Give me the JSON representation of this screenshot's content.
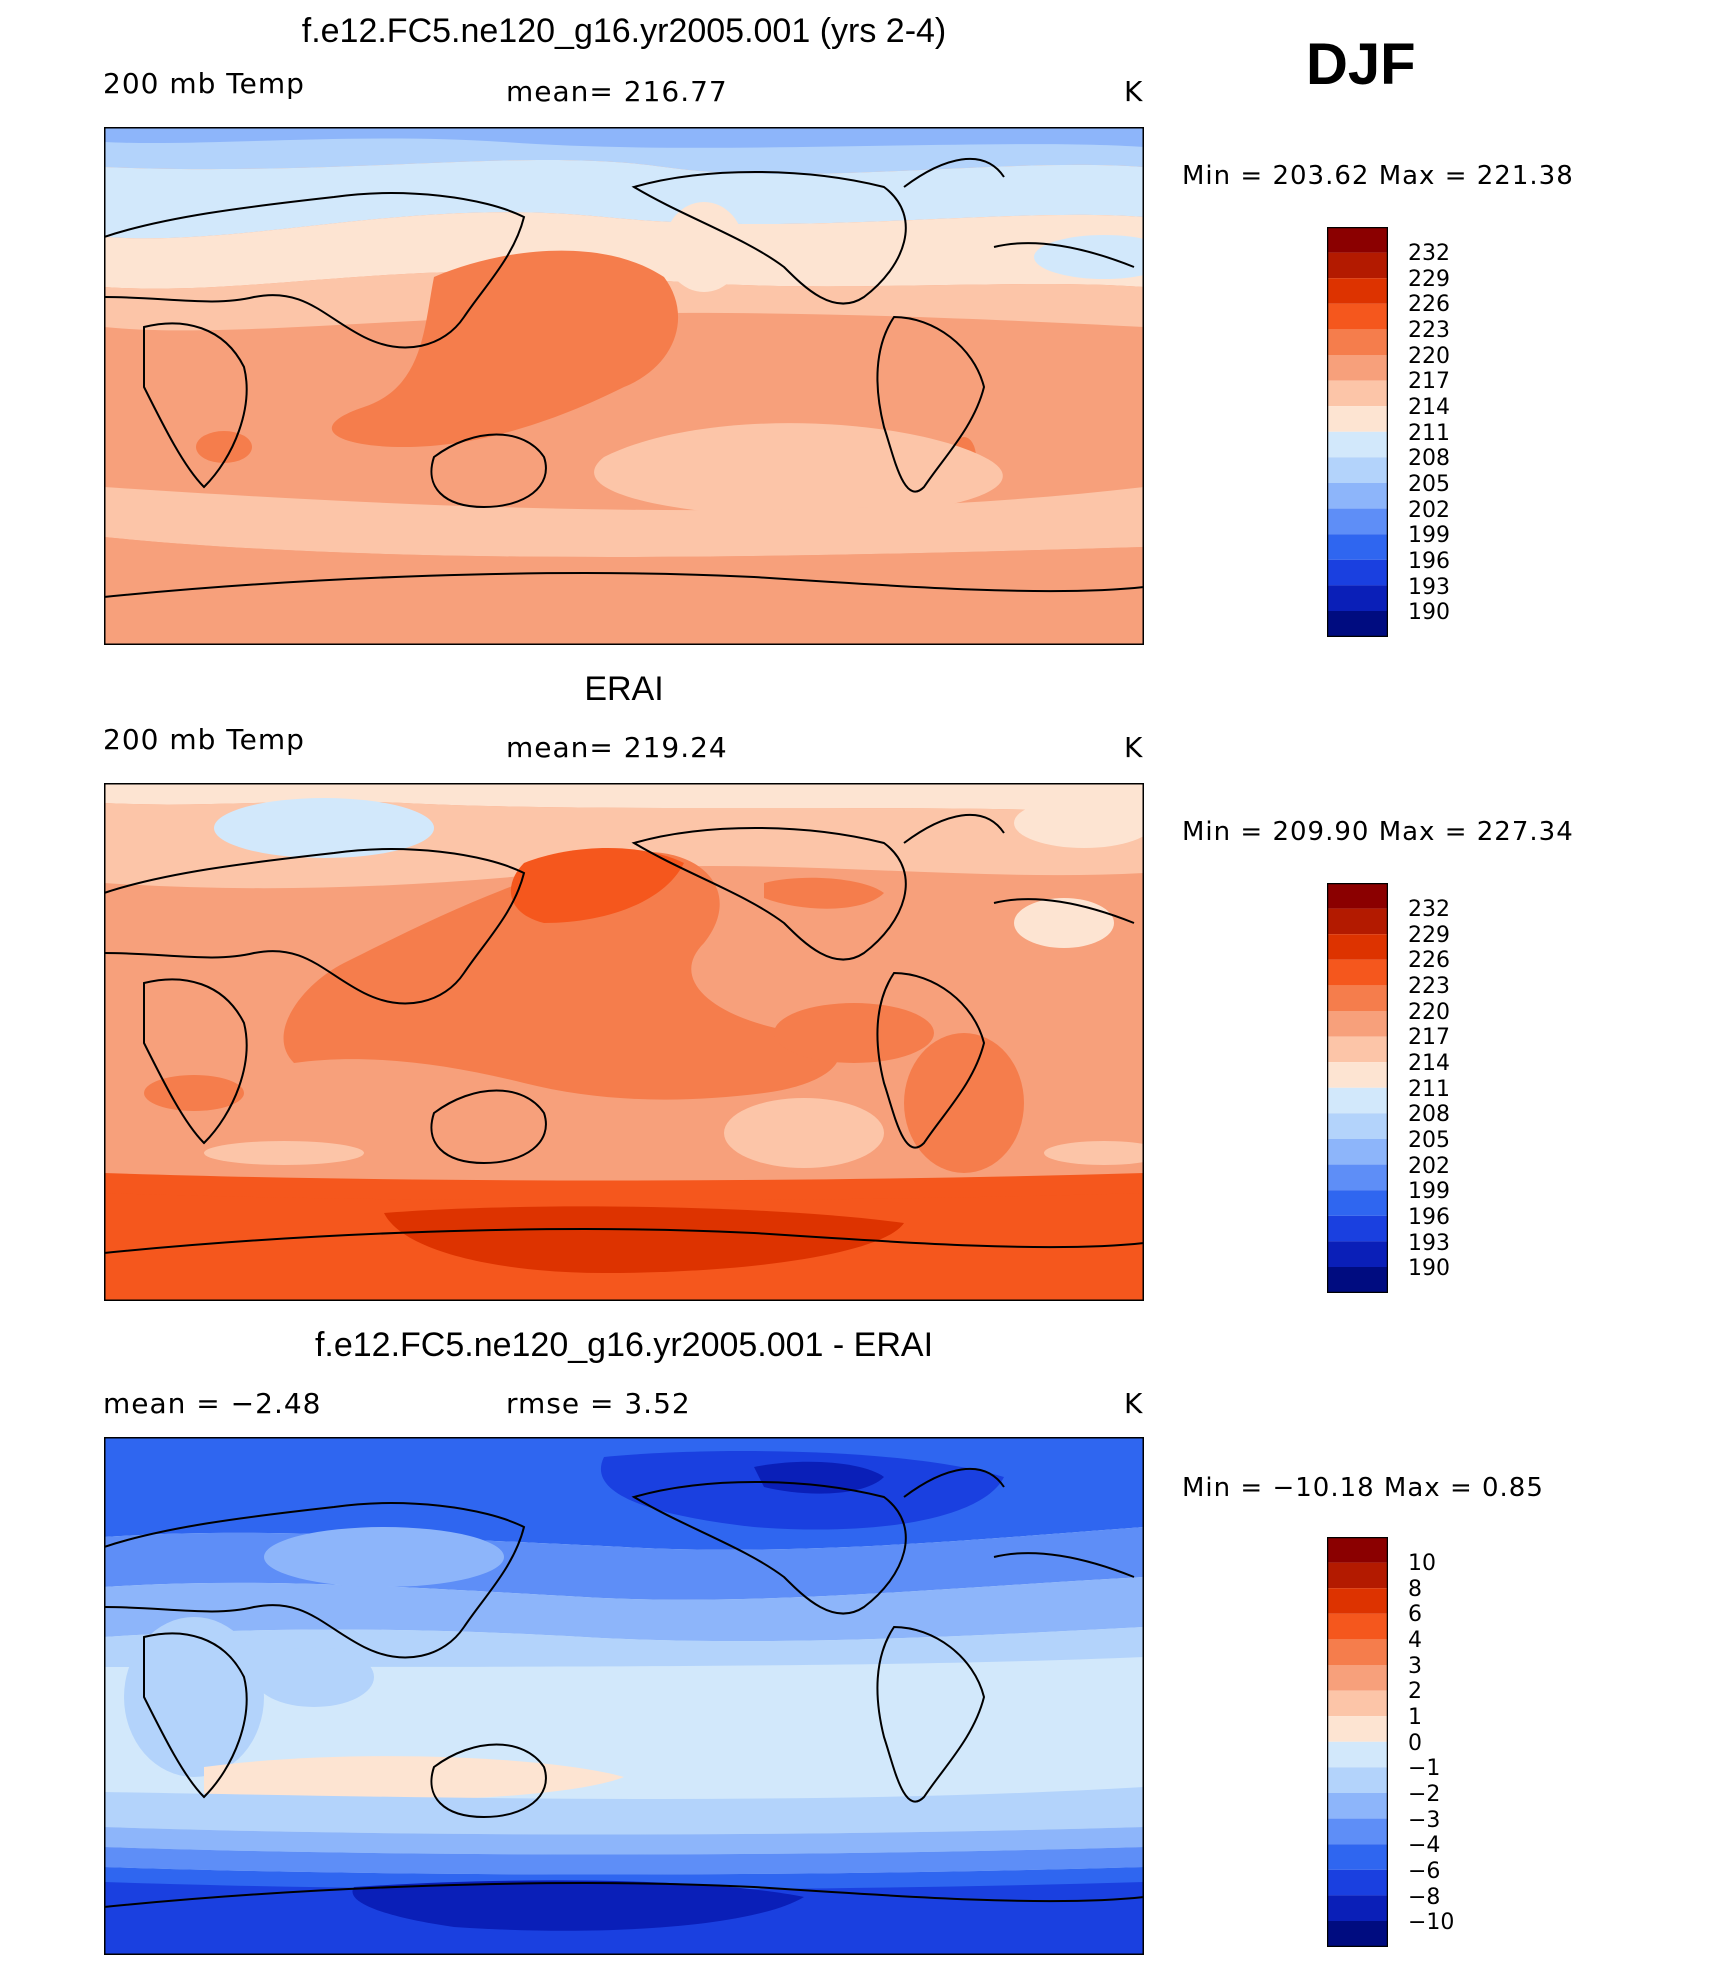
{
  "season": "DJF",
  "units": "K",
  "panels": [
    {
      "title": "f.e12.FC5.ne120_g16.yr2005.001 (yrs 2-4)",
      "left_label": "200 mb Temp",
      "mid_label": "mean=  216.77",
      "right_label": "K",
      "minmax": "Min  =  203.62  Max  =  221.38",
      "colorbar": {
        "levels": [
          "232",
          "229",
          "226",
          "223",
          "220",
          "217",
          "214",
          "211",
          "208",
          "205",
          "202",
          "199",
          "196",
          "193",
          "190"
        ],
        "colors": [
          "#8b0000",
          "#b31a00",
          "#dd3300",
          "#f5571d",
          "#f57d4c",
          "#f7a07b",
          "#fcc5a8",
          "#fde4d2",
          "#d2e8fb",
          "#b3d3fb",
          "#8db5fa",
          "#5e8ef7",
          "#2f66f0",
          "#1a40e0",
          "#0a1fb8",
          "#000c80"
        ]
      },
      "regions": [
        "background band 211-214",
        "tropical band 217-220",
        "Australia maximum 220-223"
      ]
    },
    {
      "title": "ERAI",
      "left_label": "200 mb Temp",
      "mid_label": "mean=  219.24",
      "right_label": "K",
      "minmax": "Min  =  209.90  Max  =  227.34",
      "colorbar": {
        "levels": [
          "232",
          "229",
          "226",
          "223",
          "220",
          "217",
          "214",
          "211",
          "208",
          "205",
          "202",
          "199",
          "196",
          "193",
          "190"
        ],
        "colors": [
          "#8b0000",
          "#b31a00",
          "#dd3300",
          "#f5571d",
          "#f57d4c",
          "#f7a07b",
          "#fcc5a8",
          "#fde4d2",
          "#d2e8fb",
          "#b3d3fb",
          "#8db5fa",
          "#5e8ef7",
          "#2f66f0",
          "#1a40e0",
          "#0a1fb8",
          "#000c80"
        ]
      },
      "regions": [
        "Antarctic maximum 226-229",
        "tropical Pacific 220-223",
        "Eurasia 211-214"
      ]
    },
    {
      "title": "f.e12.FC5.ne120_g16.yr2005.001 - ERAI",
      "left_label": "mean =     −2.48",
      "mid_label": "rmse =       3.52",
      "right_label": "K",
      "minmax": "Min  =  −10.18  Max  =       0.85",
      "colorbar": {
        "levels": [
          "10",
          "8",
          "6",
          "4",
          "3",
          "2",
          "1",
          "0",
          "−1",
          "−2",
          "−3",
          "−4",
          "−6",
          "−8",
          "−10"
        ],
        "colors": [
          "#8b0000",
          "#b31a00",
          "#dd3300",
          "#f5571d",
          "#f57d4c",
          "#f7a07b",
          "#fcc5a8",
          "#fde4d2",
          "#d2e8fb",
          "#b3d3fb",
          "#8db5fa",
          "#5e8ef7",
          "#2f66f0",
          "#1a40e0",
          "#0a1fb8",
          "#000c80"
        ]
      },
      "regions": [
        "tropics 0 to -1",
        "midlatitudes -2 to -4",
        "polar -6 to -10"
      ]
    }
  ]
}
